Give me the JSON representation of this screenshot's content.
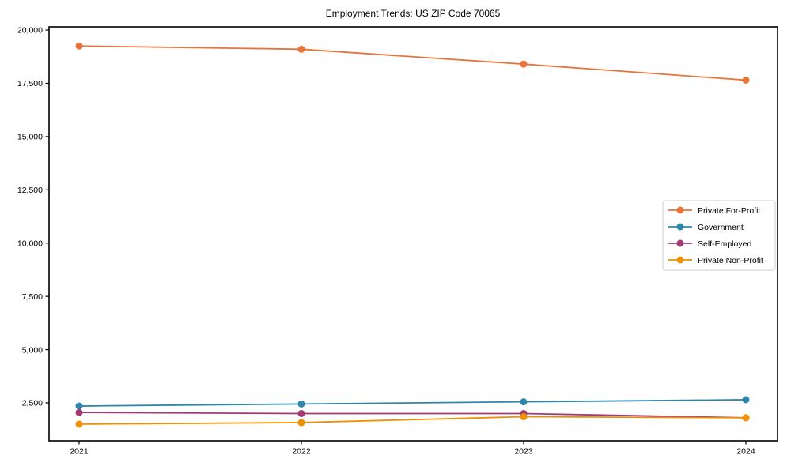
{
  "chart_data": {
    "type": "line",
    "title": "Employment Trends: US ZIP Code 70065",
    "x": [
      2021,
      2022,
      2023,
      2024
    ],
    "x_tick_labels": [
      "2021",
      "2022",
      "2023",
      "2024"
    ],
    "series": [
      {
        "name": "Private For-Profit",
        "color": "#E8743B",
        "values": [
          19250,
          19100,
          18400,
          17650
        ]
      },
      {
        "name": "Government",
        "color": "#2E86AB",
        "values": [
          2350,
          2450,
          2550,
          2650
        ]
      },
      {
        "name": "Self-Employed",
        "color": "#A23B72",
        "values": [
          2050,
          2000,
          2000,
          1800
        ]
      },
      {
        "name": "Private Non-Profit",
        "color": "#F18F01",
        "values": [
          1500,
          1575,
          1850,
          1800
        ]
      }
    ],
    "y_tick_values": [
      2500,
      5000,
      7500,
      10000,
      12500,
      15000,
      17500,
      20000
    ],
    "y_tick_labels": [
      "2,500",
      "5,000",
      "7,500",
      "10,000",
      "12,500",
      "15,000",
      "17,500",
      "20,000"
    ],
    "ylim": [
      720,
      20150
    ],
    "xlabel": "",
    "ylabel": "",
    "grid": false,
    "marker": "circle",
    "legend": {
      "position": "center-right",
      "border_color": "#cccccc",
      "background": "#ffffff"
    },
    "axis_color": "#000000"
  }
}
